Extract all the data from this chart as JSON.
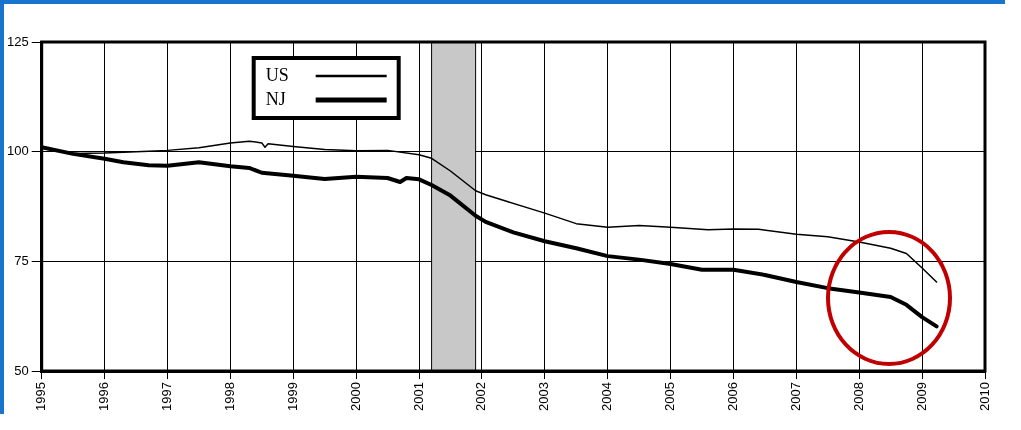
{
  "chart_data": {
    "type": "line",
    "legend": "top left",
    "grid": true,
    "marker": "none",
    "line_style": "solid",
    "xlim": [
      1995,
      2010
    ],
    "xticks": [
      1995,
      1996,
      1997,
      1998,
      1999,
      2000,
      2001,
      2002,
      2003,
      2004,
      2005,
      2006,
      2007,
      2008,
      2009,
      2010
    ],
    "ylim": [
      50,
      125
    ],
    "yticks": [
      50,
      75,
      100,
      125
    ],
    "bands": [
      {
        "axis": "x",
        "from": 2001.2,
        "to": 2001.9,
        "color": "#c8c8c8"
      }
    ],
    "series": [
      {
        "name": "US",
        "color": "#000000",
        "x": [
          1995,
          1995.5,
          1996,
          1996.5,
          1997,
          1997.5,
          1998,
          1998.3,
          1998.5,
          1998.55,
          1998.6,
          1999,
          1999.5,
          2000,
          2000.5,
          2001,
          2001.2,
          2001.5,
          2001.9,
          2002.06,
          2002.39,
          2003,
          2003.5,
          2004,
          2004.5,
          2005,
          2005.6,
          2006,
          2006.4,
          2007,
          2007.5,
          2008,
          2008.5,
          2008.75,
          2009,
          2009.23
        ],
        "values": [
          101.2,
          99.6,
          99.7,
          100,
          100.3,
          100.9,
          102,
          102.4,
          102,
          101,
          101.8,
          101.2,
          100.5,
          100.2,
          100.3,
          99.3,
          98.5,
          95.6,
          91.1,
          90.2,
          88.7,
          86,
          83.6,
          82.8,
          83.2,
          82.8,
          82.2,
          82.4,
          82.3,
          81.2,
          80.6,
          79.4,
          78,
          76.8,
          73.5,
          70.3
        ]
      },
      {
        "name": "NJ",
        "color": "#000000",
        "x": [
          1995,
          1995.5,
          1996,
          1996.3,
          1996.7,
          1997,
          1997.5,
          1998,
          1998.3,
          1998.5,
          1999,
          1999.5,
          2000,
          2000.5,
          2000.7,
          2000.8,
          2001,
          2001.2,
          2001.5,
          2001.9,
          2002.06,
          2002.5,
          2003,
          2003.5,
          2004,
          2004.5,
          2005,
          2005.5,
          2006,
          2006.5,
          2007,
          2007.5,
          2008,
          2008.5,
          2008.75,
          2009,
          2009.23
        ],
        "values": [
          101,
          99.5,
          98.4,
          97.6,
          96.9,
          96.8,
          97.6,
          96.7,
          96.3,
          95.2,
          94.5,
          93.8,
          94.3,
          94,
          93.1,
          94,
          93.7,
          92.4,
          90,
          85.4,
          84,
          81.6,
          79.6,
          78,
          76.2,
          75.4,
          74.4,
          73.1,
          73.1,
          71.9,
          70.3,
          68.9,
          67.9,
          66.9,
          65.1,
          62.3,
          60.2
        ]
      }
    ]
  }
}
